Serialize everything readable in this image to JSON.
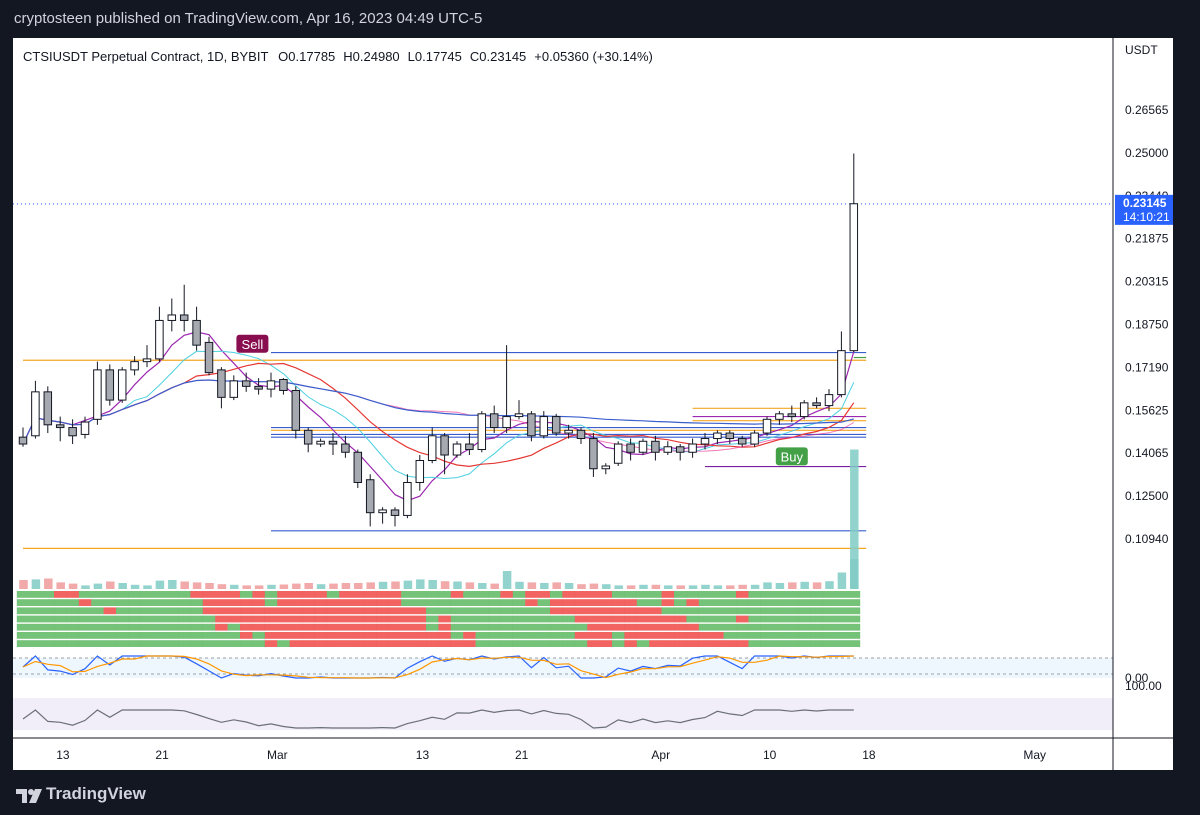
{
  "header": {
    "published_text": "cryptosteen published on TradingView.com, Apr 16, 2023 04:49 UTC-5"
  },
  "footer": {
    "brand": "TradingView"
  },
  "legend": {
    "symbol": "CTSIUSDT Perpetual Contract, 1D, BYBIT",
    "open": "O0.17785",
    "high": "H0.24980",
    "low": "L0.17745",
    "close": "C0.23145",
    "change": "+0.05360 (+30.14%)"
  },
  "colors": {
    "background": "#131722",
    "panel": "#ffffff",
    "up_candle": "#ffffff",
    "down_candle": "#a6a9b0",
    "candle_outline": "#131722",
    "blue_line": "#3a5fcd",
    "orange_line": "#f5a623",
    "red_ma": "#e53935",
    "purple_ma": "#9c27b0",
    "cyan_line": "#4dd0e1",
    "volume_up": "#80cbc4",
    "volume_down": "#ef9a9a",
    "sell_badge": "#880e4f",
    "buy_badge": "#43a047",
    "price_label": "#2962ff"
  },
  "chart_data": {
    "type": "candlestick",
    "title": "CTSIUSDT Perpetual Contract, 1D, BYBIT",
    "currency_label": "USDT",
    "y_ticks": [
      "0.26565",
      "0.25000",
      "0.23440",
      "0.21875",
      "0.20315",
      "0.18750",
      "0.17190",
      "0.15625",
      "0.14065",
      "0.12500",
      "0.10940"
    ],
    "ylim": [
      0.1025,
      0.27
    ],
    "x_ticks": [
      "13",
      "21",
      "Mar",
      "13",
      "21",
      "Apr",
      "10",
      "18",
      "May"
    ],
    "x_tick_days": [
      3,
      11,
      20,
      32,
      40,
      51,
      60,
      68,
      81
    ],
    "last_price": {
      "value": "0.23145",
      "countdown": "14:10:21"
    },
    "candles": [
      {
        "d": 0,
        "o": 0.1465,
        "h": 0.15,
        "l": 0.143,
        "c": 0.144
      },
      {
        "d": 1,
        "o": 0.147,
        "h": 0.167,
        "l": 0.146,
        "c": 0.163
      },
      {
        "d": 2,
        "o": 0.163,
        "h": 0.165,
        "l": 0.148,
        "c": 0.151
      },
      {
        "d": 3,
        "o": 0.151,
        "h": 0.154,
        "l": 0.145,
        "c": 0.15
      },
      {
        "d": 4,
        "o": 0.15,
        "h": 0.153,
        "l": 0.144,
        "c": 0.147
      },
      {
        "d": 5,
        "o": 0.1475,
        "h": 0.154,
        "l": 0.146,
        "c": 0.152
      },
      {
        "d": 6,
        "o": 0.153,
        "h": 0.174,
        "l": 0.151,
        "c": 0.171
      },
      {
        "d": 7,
        "o": 0.171,
        "h": 0.173,
        "l": 0.158,
        "c": 0.16
      },
      {
        "d": 8,
        "o": 0.16,
        "h": 0.172,
        "l": 0.159,
        "c": 0.171
      },
      {
        "d": 9,
        "o": 0.171,
        "h": 0.176,
        "l": 0.169,
        "c": 0.174
      },
      {
        "d": 10,
        "o": 0.174,
        "h": 0.18,
        "l": 0.172,
        "c": 0.175
      },
      {
        "d": 11,
        "o": 0.175,
        "h": 0.194,
        "l": 0.174,
        "c": 0.189
      },
      {
        "d": 12,
        "o": 0.189,
        "h": 0.197,
        "l": 0.185,
        "c": 0.191
      },
      {
        "d": 13,
        "o": 0.191,
        "h": 0.202,
        "l": 0.185,
        "c": 0.189
      },
      {
        "d": 14,
        "o": 0.189,
        "h": 0.194,
        "l": 0.178,
        "c": 0.18
      },
      {
        "d": 15,
        "o": 0.181,
        "h": 0.183,
        "l": 0.169,
        "c": 0.17
      },
      {
        "d": 16,
        "o": 0.171,
        "h": 0.172,
        "l": 0.157,
        "c": 0.161
      },
      {
        "d": 17,
        "o": 0.161,
        "h": 0.169,
        "l": 0.16,
        "c": 0.167
      },
      {
        "d": 18,
        "o": 0.167,
        "h": 0.17,
        "l": 0.163,
        "c": 0.165
      },
      {
        "d": 19,
        "o": 0.165,
        "h": 0.168,
        "l": 0.162,
        "c": 0.164
      },
      {
        "d": 20,
        "o": 0.164,
        "h": 0.17,
        "l": 0.161,
        "c": 0.167
      },
      {
        "d": 21,
        "o": 0.1675,
        "h": 0.168,
        "l": 0.162,
        "c": 0.1635
      },
      {
        "d": 22,
        "o": 0.1635,
        "h": 0.165,
        "l": 0.146,
        "c": 0.149
      },
      {
        "d": 23,
        "o": 0.149,
        "h": 0.15,
        "l": 0.141,
        "c": 0.144
      },
      {
        "d": 24,
        "o": 0.144,
        "h": 0.146,
        "l": 0.143,
        "c": 0.145
      },
      {
        "d": 25,
        "o": 0.145,
        "h": 0.148,
        "l": 0.14,
        "c": 0.144
      },
      {
        "d": 26,
        "o": 0.144,
        "h": 0.147,
        "l": 0.139,
        "c": 0.141
      },
      {
        "d": 27,
        "o": 0.141,
        "h": 0.142,
        "l": 0.128,
        "c": 0.13
      },
      {
        "d": 28,
        "o": 0.131,
        "h": 0.133,
        "l": 0.114,
        "c": 0.119
      },
      {
        "d": 29,
        "o": 0.119,
        "h": 0.121,
        "l": 0.115,
        "c": 0.12
      },
      {
        "d": 30,
        "o": 0.12,
        "h": 0.121,
        "l": 0.114,
        "c": 0.118
      },
      {
        "d": 31,
        "o": 0.118,
        "h": 0.133,
        "l": 0.117,
        "c": 0.13
      },
      {
        "d": 32,
        "o": 0.13,
        "h": 0.14,
        "l": 0.127,
        "c": 0.138
      },
      {
        "d": 33,
        "o": 0.138,
        "h": 0.15,
        "l": 0.137,
        "c": 0.147
      },
      {
        "d": 34,
        "o": 0.147,
        "h": 0.148,
        "l": 0.133,
        "c": 0.14
      },
      {
        "d": 35,
        "o": 0.14,
        "h": 0.145,
        "l": 0.139,
        "c": 0.144
      },
      {
        "d": 36,
        "o": 0.144,
        "h": 0.148,
        "l": 0.14,
        "c": 0.142
      },
      {
        "d": 37,
        "o": 0.142,
        "h": 0.156,
        "l": 0.141,
        "c": 0.155
      },
      {
        "d": 38,
        "o": 0.155,
        "h": 0.158,
        "l": 0.148,
        "c": 0.15
      },
      {
        "d": 39,
        "o": 0.15,
        "h": 0.18,
        "l": 0.148,
        "c": 0.154
      },
      {
        "d": 40,
        "o": 0.154,
        "h": 0.16,
        "l": 0.153,
        "c": 0.155
      },
      {
        "d": 41,
        "o": 0.155,
        "h": 0.156,
        "l": 0.145,
        "c": 0.147
      },
      {
        "d": 42,
        "o": 0.147,
        "h": 0.156,
        "l": 0.146,
        "c": 0.154
      },
      {
        "d": 43,
        "o": 0.154,
        "h": 0.155,
        "l": 0.147,
        "c": 0.148
      },
      {
        "d": 44,
        "o": 0.148,
        "h": 0.151,
        "l": 0.146,
        "c": 0.149
      },
      {
        "d": 45,
        "o": 0.149,
        "h": 0.15,
        "l": 0.144,
        "c": 0.146
      },
      {
        "d": 46,
        "o": 0.146,
        "h": 0.148,
        "l": 0.132,
        "c": 0.135
      },
      {
        "d": 47,
        "o": 0.135,
        "h": 0.137,
        "l": 0.133,
        "c": 0.136
      },
      {
        "d": 48,
        "o": 0.137,
        "h": 0.145,
        "l": 0.136,
        "c": 0.144
      },
      {
        "d": 49,
        "o": 0.144,
        "h": 0.146,
        "l": 0.138,
        "c": 0.141
      },
      {
        "d": 50,
        "o": 0.141,
        "h": 0.146,
        "l": 0.14,
        "c": 0.145
      },
      {
        "d": 51,
        "o": 0.145,
        "h": 0.147,
        "l": 0.138,
        "c": 0.141
      },
      {
        "d": 52,
        "o": 0.141,
        "h": 0.145,
        "l": 0.14,
        "c": 0.143
      },
      {
        "d": 53,
        "o": 0.143,
        "h": 0.144,
        "l": 0.138,
        "c": 0.141
      },
      {
        "d": 54,
        "o": 0.141,
        "h": 0.146,
        "l": 0.139,
        "c": 0.144
      },
      {
        "d": 55,
        "o": 0.144,
        "h": 0.148,
        "l": 0.142,
        "c": 0.146
      },
      {
        "d": 56,
        "o": 0.146,
        "h": 0.149,
        "l": 0.144,
        "c": 0.148
      },
      {
        "d": 57,
        "o": 0.148,
        "h": 0.149,
        "l": 0.144,
        "c": 0.146
      },
      {
        "d": 58,
        "o": 0.146,
        "h": 0.147,
        "l": 0.143,
        "c": 0.144
      },
      {
        "d": 59,
        "o": 0.144,
        "h": 0.149,
        "l": 0.143,
        "c": 0.148
      },
      {
        "d": 60,
        "o": 0.148,
        "h": 0.154,
        "l": 0.147,
        "c": 0.153
      },
      {
        "d": 61,
        "o": 0.153,
        "h": 0.156,
        "l": 0.151,
        "c": 0.155
      },
      {
        "d": 62,
        "o": 0.155,
        "h": 0.158,
        "l": 0.152,
        "c": 0.154
      },
      {
        "d": 63,
        "o": 0.154,
        "h": 0.16,
        "l": 0.153,
        "c": 0.159
      },
      {
        "d": 64,
        "o": 0.159,
        "h": 0.161,
        "l": 0.157,
        "c": 0.158
      },
      {
        "d": 65,
        "o": 0.158,
        "h": 0.164,
        "l": 0.156,
        "c": 0.162
      },
      {
        "d": 66,
        "o": 0.162,
        "h": 0.185,
        "l": 0.161,
        "c": 0.178
      },
      {
        "d": 67,
        "o": 0.178,
        "h": 0.2498,
        "l": 0.1775,
        "c": 0.2315
      }
    ],
    "volume": [
      0.3,
      0.32,
      0.35,
      0.22,
      0.18,
      0.12,
      0.18,
      0.25,
      0.2,
      0.14,
      0.12,
      0.28,
      0.3,
      0.25,
      0.22,
      0.2,
      0.16,
      0.14,
      0.12,
      0.12,
      0.14,
      0.15,
      0.18,
      0.2,
      0.16,
      0.18,
      0.2,
      0.2,
      0.22,
      0.24,
      0.25,
      0.28,
      0.32,
      0.3,
      0.26,
      0.25,
      0.22,
      0.2,
      0.18,
      0.6,
      0.24,
      0.22,
      0.2,
      0.22,
      0.2,
      0.16,
      0.18,
      0.16,
      0.12,
      0.12,
      0.14,
      0.14,
      0.12,
      0.12,
      0.12,
      0.14,
      0.12,
      0.12,
      0.14,
      0.14,
      0.22,
      0.2,
      0.22,
      0.24,
      0.22,
      0.26,
      0.55,
      1.0
    ],
    "levels": [
      {
        "price": 0.1773,
        "color": "#3a5fcd",
        "from": 20,
        "to": 68
      },
      {
        "price": 0.1745,
        "color": "#f5a623",
        "from": 0,
        "to": 68
      },
      {
        "price": 0.1755,
        "color": "#43a047",
        "from": 67,
        "to": 68
      },
      {
        "price": 0.157,
        "color": "#f5a623",
        "from": 54,
        "to": 68
      },
      {
        "price": 0.154,
        "color": "#9c27b0",
        "from": 54,
        "to": 68
      },
      {
        "price": 0.1525,
        "color": "#f5a623",
        "from": 54,
        "to": 68
      },
      {
        "price": 0.15,
        "color": "#3a5fcd",
        "from": 20,
        "to": 68
      },
      {
        "price": 0.149,
        "color": "#f5a623",
        "from": 20,
        "to": 68
      },
      {
        "price": 0.1475,
        "color": "#3a5fcd",
        "from": 20,
        "to": 68
      },
      {
        "price": 0.1465,
        "color": "#3a5fcd",
        "from": 20,
        "to": 68
      },
      {
        "price": 0.1358,
        "color": "#7b1fa2",
        "from": 55,
        "to": 68
      },
      {
        "price": 0.1124,
        "color": "#3a5fcd",
        "from": 20,
        "to": 68
      },
      {
        "price": 0.106,
        "color": "#f5a623",
        "from": 0,
        "to": 68
      }
    ],
    "signals": [
      {
        "label": "Sell",
        "day": 18.5,
        "price": 0.1805,
        "color": "#880e4f"
      },
      {
        "label": "Buy",
        "day": 62,
        "price": 0.1395,
        "color": "#43a047"
      }
    ],
    "oscillator": {
      "zero_label": "0.00"
    },
    "rsi_panel": {
      "label": "100.00"
    }
  }
}
